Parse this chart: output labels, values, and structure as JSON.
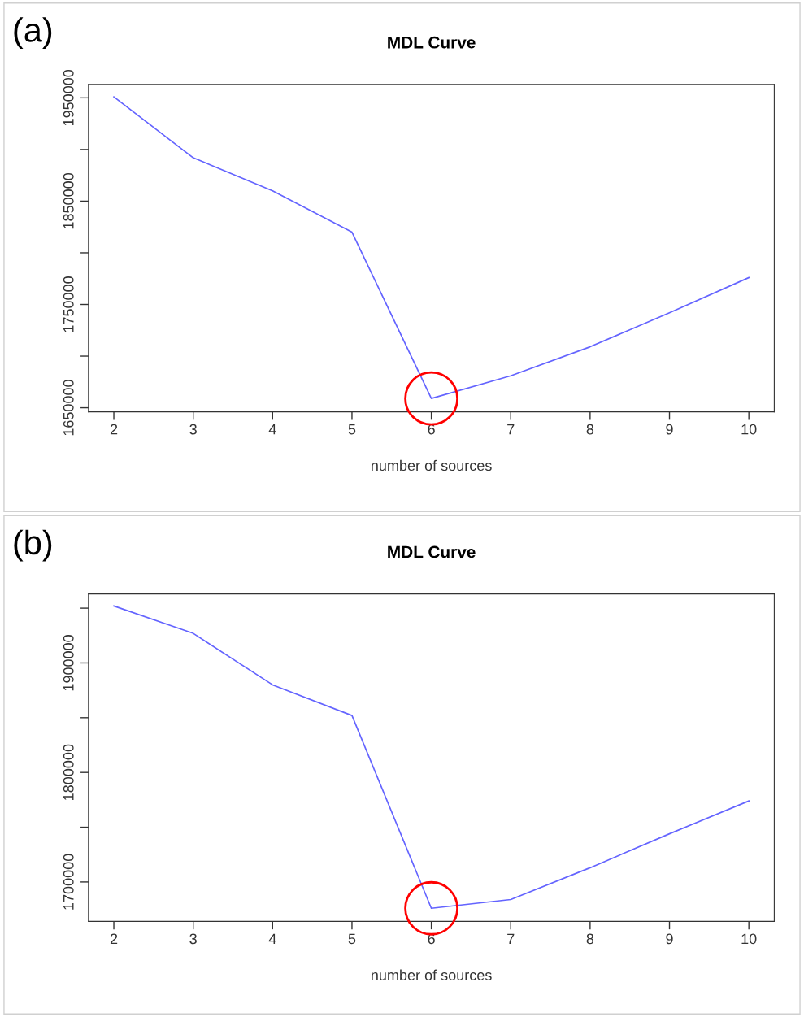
{
  "chart_data": [
    {
      "type": "line",
      "title": "MDL Curve",
      "xlabel": "number of sources",
      "annotations": [
        "(a)"
      ],
      "x": [
        2,
        3,
        4,
        5,
        6,
        7,
        8,
        9,
        10
      ],
      "series": [
        {
          "color": "#6464ff",
          "values": [
            1951000,
            1892000,
            1860000,
            1820000,
            1659000,
            1681000,
            1709000,
            1742000,
            1776000
          ]
        }
      ],
      "xlim": [
        1.68,
        10.32
      ],
      "xticks": [
        2,
        3,
        4,
        5,
        6,
        7,
        8,
        9,
        10
      ],
      "ylim": [
        1646000,
        1963000
      ],
      "yticks": [
        1650000,
        {
          "value": 1700000,
          "label": null
        },
        1750000,
        {
          "value": 1800000,
          "label": null
        },
        1850000,
        {
          "value": 1900000,
          "label": null
        },
        1950000
      ],
      "grid": false,
      "legend": false,
      "marker": "none",
      "line_style": "solid"
    },
    {
      "type": "line",
      "title": "MDL Curve",
      "xlabel": "number of sources",
      "annotations": [
        "(b)"
      ],
      "x": [
        2,
        3,
        4,
        5,
        6,
        7,
        8,
        9,
        10
      ],
      "series": [
        {
          "color": "#6464ff",
          "values": [
            1952000,
            1927000,
            1880000,
            1852000,
            1676000,
            1684000,
            1713000,
            1744000,
            1774000
          ]
        }
      ],
      "xlim": [
        1.68,
        10.32
      ],
      "xticks": [
        2,
        3,
        4,
        5,
        6,
        7,
        8,
        9,
        10
      ],
      "ylim": [
        1664000,
        1963000
      ],
      "yticks": [
        1700000,
        {
          "value": 1750000,
          "label": null
        },
        1800000,
        {
          "value": 1850000,
          "label": null
        },
        1900000,
        {
          "value": 1950000,
          "label": null
        }
      ],
      "grid": false,
      "legend": false,
      "marker": "none",
      "line_style": "solid"
    }
  ]
}
